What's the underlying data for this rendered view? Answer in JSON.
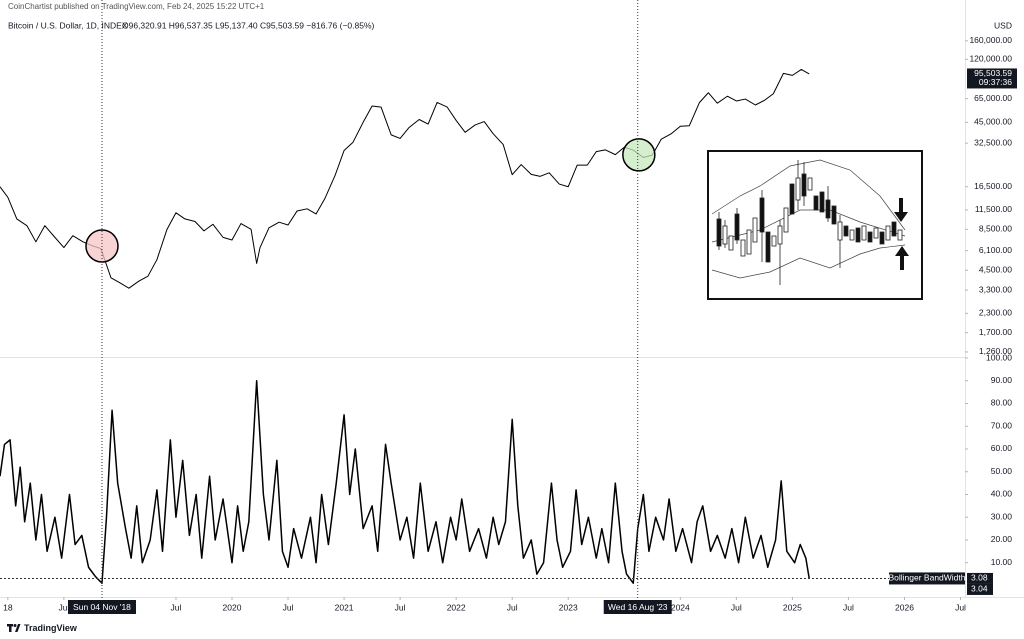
{
  "page": {
    "publisher_line": "CoinChartist published on TradingView.com, Feb 24, 2025 15:22 UTC+1",
    "footer": "TradingView"
  },
  "chart_data": [
    {
      "type": "line",
      "title": "Bitcoin / U.S. Dollar, 1D, INDEX",
      "annotations": [
        "O96,320.91 H96,537.35 L95,137.40 C95,503.59 −816.76 (−0.85%)"
      ],
      "y_label": "USD",
      "log_scale": true,
      "grid": false,
      "xlim": [
        2017.93,
        2026.54
      ],
      "ylim": [
        1165,
        302000
      ],
      "yticks": [
        {
          "value": 160000,
          "label": "160,000.00"
        },
        {
          "value": 120000,
          "label": "120,000.00"
        },
        {
          "value": 65000,
          "label": "65,000.00"
        },
        {
          "value": 45000,
          "label": "45,000.00"
        },
        {
          "value": 32500,
          "label": "32,500.00"
        },
        {
          "value": 16500,
          "label": "16,500.00"
        },
        {
          "value": 11500,
          "label": "11,500.00"
        },
        {
          "value": 8500,
          "label": "8,500.00"
        },
        {
          "value": 6100,
          "label": "6,100.00"
        },
        {
          "value": 4500,
          "label": "4,500.00"
        },
        {
          "value": 3300,
          "label": "3,300.00"
        },
        {
          "value": 2300,
          "label": "2,300.00"
        },
        {
          "value": 1700,
          "label": "1,700.00"
        },
        {
          "value": 1260,
          "label": "1,260.00"
        }
      ],
      "x": [
        2017.93,
        2018.0,
        2018.08,
        2018.17,
        2018.25,
        2018.33,
        2018.42,
        2018.5,
        2018.58,
        2018.67,
        2018.75,
        2018.83,
        2018.92,
        2019.0,
        2019.08,
        2019.17,
        2019.25,
        2019.33,
        2019.42,
        2019.5,
        2019.58,
        2019.67,
        2019.75,
        2019.83,
        2019.92,
        2020.0,
        2020.08,
        2020.17,
        2020.22,
        2020.25,
        2020.33,
        2020.42,
        2020.5,
        2020.58,
        2020.67,
        2020.75,
        2020.83,
        2020.92,
        2021.0,
        2021.08,
        2021.17,
        2021.25,
        2021.33,
        2021.42,
        2021.5,
        2021.58,
        2021.67,
        2021.75,
        2021.83,
        2021.92,
        2022.0,
        2022.08,
        2022.17,
        2022.25,
        2022.33,
        2022.42,
        2022.5,
        2022.58,
        2022.67,
        2022.75,
        2022.83,
        2022.92,
        2023.0,
        2023.08,
        2023.17,
        2023.25,
        2023.33,
        2023.42,
        2023.5,
        2023.58,
        2023.67,
        2023.75,
        2023.83,
        2023.92,
        2024.0,
        2024.08,
        2024.17,
        2024.25,
        2024.33,
        2024.42,
        2024.5,
        2024.58,
        2024.67,
        2024.75,
        2024.83,
        2024.92,
        2025.0,
        2025.08,
        2025.15
      ],
      "series": [
        {
          "name": "Bitcoin / U.S. Dollar",
          "color": "#000000",
          "values": [
            16500,
            14000,
            10000,
            9000,
            7000,
            9000,
            7500,
            6400,
            7700,
            7000,
            6600,
            6300,
            4000,
            3700,
            3400,
            3800,
            4100,
            5300,
            8500,
            11000,
            10000,
            9600,
            8300,
            9200,
            7500,
            7200,
            9300,
            8500,
            5000,
            6400,
            8700,
            9500,
            9100,
            11300,
            11700,
            10800,
            13800,
            19700,
            29000,
            33000,
            45000,
            58000,
            57000,
            37000,
            35000,
            41500,
            47000,
            43800,
            61300,
            57000,
            46300,
            38500,
            43200,
            45500,
            37700,
            31800,
            19900,
            23300,
            20000,
            19400,
            20500,
            17200,
            16500,
            23100,
            23100,
            28500,
            29300,
            27200,
            30500,
            29200,
            26000,
            27000,
            34600,
            37700,
            42300,
            42600,
            61100,
            71300,
            60600,
            67500,
            62700,
            64600,
            58900,
            63300,
            70200,
            96400,
            93400,
            102400,
            95503.59
          ]
        }
      ],
      "circles": [
        {
          "x": 2018.84,
          "y": 6560,
          "color": "#f6c6c6"
        },
        {
          "x": 2023.63,
          "y": 27100,
          "color": "#c6e8bd"
        }
      ],
      "last_price": {
        "value": 95503.59,
        "label": "95,503.59"
      },
      "countdown": "09:37:36"
    },
    {
      "type": "line",
      "indicator_label": "Bollinger BandWidth",
      "grid": false,
      "xlim": [
        2017.93,
        2026.54
      ],
      "ylim": [
        -2,
        100
      ],
      "yticks": [
        {
          "value": 100,
          "label": "100.00"
        },
        {
          "value": 90,
          "label": "90.00"
        },
        {
          "value": 80,
          "label": "80.00"
        },
        {
          "value": 70,
          "label": "70.00"
        },
        {
          "value": 60,
          "label": "60.00"
        },
        {
          "value": 50,
          "label": "50.00"
        },
        {
          "value": 40,
          "label": "40.00"
        },
        {
          "value": 30,
          "label": "30.00"
        },
        {
          "value": 20,
          "label": "20.00"
        },
        {
          "value": 10,
          "label": "10.00"
        }
      ],
      "xticks": [
        {
          "value": 2018,
          "label": "18"
        },
        {
          "value": 2018.5,
          "label": "Jul"
        },
        {
          "value": 2019.5,
          "label": "Jul"
        },
        2020,
        {
          "value": 2020.5,
          "label": "Jul"
        },
        2021,
        {
          "value": 2021.5,
          "label": "Jul"
        },
        2022,
        {
          "value": 2022.5,
          "label": "Jul"
        },
        2023,
        2024,
        {
          "value": 2024.5,
          "label": "Jul"
        },
        2025,
        {
          "value": 2025.5,
          "label": "Jul"
        },
        2026,
        {
          "value": 2026.5,
          "label": "Jul"
        }
      ],
      "crosshairs": [
        {
          "x": 2018.84,
          "label": "Sun 04 Nov '18"
        },
        {
          "x": 2023.62,
          "label": "Wed 16 Aug '23"
        }
      ],
      "x": [
        2017.93,
        2017.97,
        2018.02,
        2018.07,
        2018.11,
        2018.15,
        2018.2,
        2018.25,
        2018.3,
        2018.35,
        2018.42,
        2018.48,
        2018.55,
        2018.6,
        2018.66,
        2018.72,
        2018.78,
        2018.84,
        2018.88,
        2018.93,
        2018.98,
        2019.05,
        2019.1,
        2019.15,
        2019.2,
        2019.27,
        2019.33,
        2019.38,
        2019.45,
        2019.5,
        2019.56,
        2019.62,
        2019.68,
        2019.73,
        2019.8,
        2019.85,
        2019.92,
        2020.0,
        2020.05,
        2020.1,
        2020.15,
        2020.22,
        2020.28,
        2020.33,
        2020.4,
        2020.45,
        2020.5,
        2020.55,
        2020.62,
        2020.7,
        2020.75,
        2020.8,
        2020.86,
        2020.93,
        2021.0,
        2021.05,
        2021.1,
        2021.17,
        2021.25,
        2021.3,
        2021.37,
        2021.42,
        2021.5,
        2021.56,
        2021.62,
        2021.68,
        2021.75,
        2021.82,
        2021.88,
        2021.95,
        2022.0,
        2022.05,
        2022.12,
        2022.2,
        2022.27,
        2022.33,
        2022.38,
        2022.44,
        2022.5,
        2022.55,
        2022.6,
        2022.67,
        2022.72,
        2022.78,
        2022.85,
        2022.9,
        2022.95,
        2023.02,
        2023.07,
        2023.12,
        2023.18,
        2023.25,
        2023.3,
        2023.36,
        2023.42,
        2023.48,
        2023.52,
        2023.58,
        2023.62,
        2023.67,
        2023.72,
        2023.78,
        2023.85,
        2023.9,
        2023.96,
        2024.02,
        2024.1,
        2024.15,
        2024.2,
        2024.27,
        2024.33,
        2024.4,
        2024.46,
        2024.52,
        2024.58,
        2024.65,
        2024.72,
        2024.78,
        2024.85,
        2024.9,
        2024.95,
        2025.02,
        2025.07,
        2025.12,
        2025.15
      ],
      "series": [
        {
          "name": "Bollinger BandWidth",
          "color": "#000000",
          "values": [
            48,
            62,
            64,
            35,
            52,
            28,
            45,
            20,
            40,
            15,
            30,
            12,
            40,
            18,
            22,
            8,
            4,
            1,
            30,
            77,
            45,
            25,
            12,
            35,
            10,
            20,
            42,
            15,
            64,
            30,
            55,
            22,
            40,
            12,
            48,
            20,
            38,
            10,
            35,
            15,
            28,
            90,
            40,
            20,
            55,
            15,
            8,
            25,
            12,
            30,
            10,
            40,
            18,
            45,
            75,
            40,
            60,
            25,
            35,
            15,
            62,
            45,
            20,
            30,
            12,
            45,
            15,
            28,
            10,
            30,
            20,
            38,
            15,
            25,
            12,
            30,
            18,
            28,
            73,
            35,
            12,
            20,
            5,
            10,
            45,
            20,
            8,
            15,
            42,
            18,
            30,
            12,
            25,
            10,
            45,
            15,
            5,
            1,
            25,
            40,
            15,
            30,
            20,
            38,
            15,
            25,
            10,
            28,
            35,
            15,
            22,
            12,
            25,
            10,
            30,
            12,
            22,
            8,
            20,
            46,
            15,
            10,
            18,
            12,
            3.08
          ]
        }
      ],
      "last_values": [
        3.08,
        3.04
      ]
    }
  ]
}
